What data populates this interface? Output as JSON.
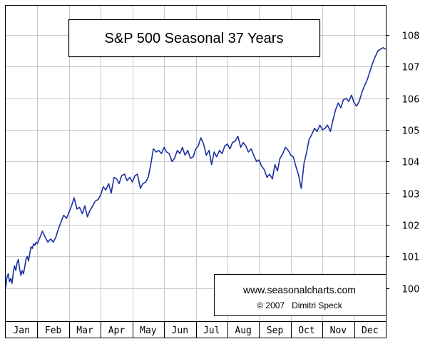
{
  "chart_data": {
    "type": "line",
    "title": "S&P 500 Seasonal 37 Years",
    "xlabel": "",
    "ylabel": "",
    "months": [
      "Jan",
      "Feb",
      "Mar",
      "Apr",
      "May",
      "Jun",
      "Jul",
      "Aug",
      "Sep",
      "Oct",
      "Nov",
      "Dec"
    ],
    "y_ticks": [
      "100",
      "101",
      "102",
      "103",
      "104",
      "105",
      "106",
      "107",
      "108"
    ],
    "ylim": [
      99.8,
      108.5
    ],
    "y_axis_side": "right",
    "grid": true,
    "line_color": "#1a2fa0",
    "watermark": {
      "url": "www.seasonalcharts.com",
      "copyright": "© 2007   Dimitri Speck"
    },
    "series": [
      {
        "x": [
          0.0,
          0.04,
          0.08,
          0.12,
          0.16,
          0.2,
          0.24,
          0.28,
          0.32,
          0.36,
          0.4,
          0.44,
          0.48,
          0.52,
          0.56,
          0.6,
          0.64,
          0.68,
          0.72,
          0.76,
          0.8,
          0.84,
          0.88,
          0.92,
          0.96,
          1.0,
          1.08,
          1.16,
          1.25,
          1.33,
          1.42,
          1.5,
          1.58,
          1.66,
          1.75,
          1.83,
          1.92,
          2.0,
          2.08,
          2.16,
          2.25,
          2.33,
          2.42,
          2.5,
          2.58,
          2.66,
          2.75,
          2.83,
          2.92,
          3.0,
          3.08,
          3.16,
          3.25,
          3.33,
          3.42,
          3.5,
          3.58,
          3.66,
          3.75,
          3.83,
          3.92,
          4.0,
          4.08,
          4.16,
          4.25,
          4.33,
          4.42,
          4.5,
          4.58,
          4.66,
          4.75,
          4.83,
          4.92,
          5.0,
          5.08,
          5.16,
          5.25,
          5.33,
          5.42,
          5.5,
          5.58,
          5.66,
          5.75,
          5.83,
          5.92,
          6.0,
          6.08,
          6.16,
          6.25,
          6.33,
          6.42,
          6.5,
          6.58,
          6.66,
          6.75,
          6.83,
          6.92,
          7.0,
          7.08,
          7.16,
          7.25,
          7.33,
          7.42,
          7.5,
          7.58,
          7.66,
          7.75,
          7.83,
          7.92,
          8.0,
          8.08,
          8.16,
          8.25,
          8.33,
          8.42,
          8.5,
          8.58,
          8.66,
          8.75,
          8.83,
          8.92,
          9.0,
          9.08,
          9.16,
          9.25,
          9.33,
          9.42,
          9.5,
          9.58,
          9.66,
          9.75,
          9.83,
          9.92,
          10.0,
          10.08,
          10.16,
          10.25,
          10.33,
          10.42,
          10.5,
          10.58,
          10.66,
          10.75,
          10.83,
          10.92,
          11.0,
          11.08,
          11.16,
          11.25,
          11.33,
          11.42,
          11.5,
          11.58,
          11.66,
          11.75,
          11.83,
          11.92,
          12.0
        ],
        "y": [
          100.0,
          100.35,
          100.45,
          100.2,
          100.3,
          100.15,
          100.5,
          100.7,
          100.55,
          100.8,
          100.9,
          100.6,
          100.4,
          100.55,
          100.45,
          100.65,
          100.9,
          101.0,
          100.85,
          101.1,
          101.3,
          101.25,
          101.4,
          101.35,
          101.45,
          101.4,
          101.6,
          101.8,
          101.6,
          101.45,
          101.55,
          101.45,
          101.6,
          101.85,
          102.1,
          102.3,
          102.2,
          102.4,
          102.6,
          102.85,
          102.5,
          102.55,
          102.35,
          102.6,
          102.25,
          102.45,
          102.6,
          102.75,
          102.8,
          102.95,
          103.2,
          103.1,
          103.3,
          103.0,
          103.5,
          103.45,
          103.3,
          103.55,
          103.6,
          103.4,
          103.5,
          103.35,
          103.55,
          103.6,
          103.15,
          103.3,
          103.35,
          103.5,
          103.9,
          104.4,
          104.3,
          104.35,
          104.25,
          104.45,
          104.3,
          104.25,
          104.0,
          104.1,
          104.35,
          104.25,
          104.45,
          104.2,
          104.35,
          104.1,
          104.15,
          104.4,
          104.5,
          104.75,
          104.55,
          104.2,
          104.35,
          103.9,
          104.3,
          104.15,
          104.35,
          104.25,
          104.5,
          104.55,
          104.4,
          104.6,
          104.65,
          104.8,
          104.45,
          104.6,
          104.5,
          104.3,
          104.4,
          104.2,
          104.0,
          104.05,
          103.85,
          103.75,
          103.5,
          103.6,
          103.45,
          103.9,
          103.7,
          104.1,
          104.25,
          104.45,
          104.35,
          104.2,
          104.15,
          103.85,
          103.55,
          103.15,
          103.95,
          104.3,
          104.7,
          104.85,
          105.05,
          104.95,
          105.15,
          105.0,
          105.05,
          105.15,
          104.95,
          105.3,
          105.65,
          105.85,
          105.7,
          105.95,
          106.0,
          105.9,
          106.1,
          105.85,
          105.75,
          105.9,
          106.2,
          106.4,
          106.6,
          106.85,
          107.1,
          107.3,
          107.5,
          107.55,
          107.6,
          107.55
        ]
      }
    ]
  }
}
